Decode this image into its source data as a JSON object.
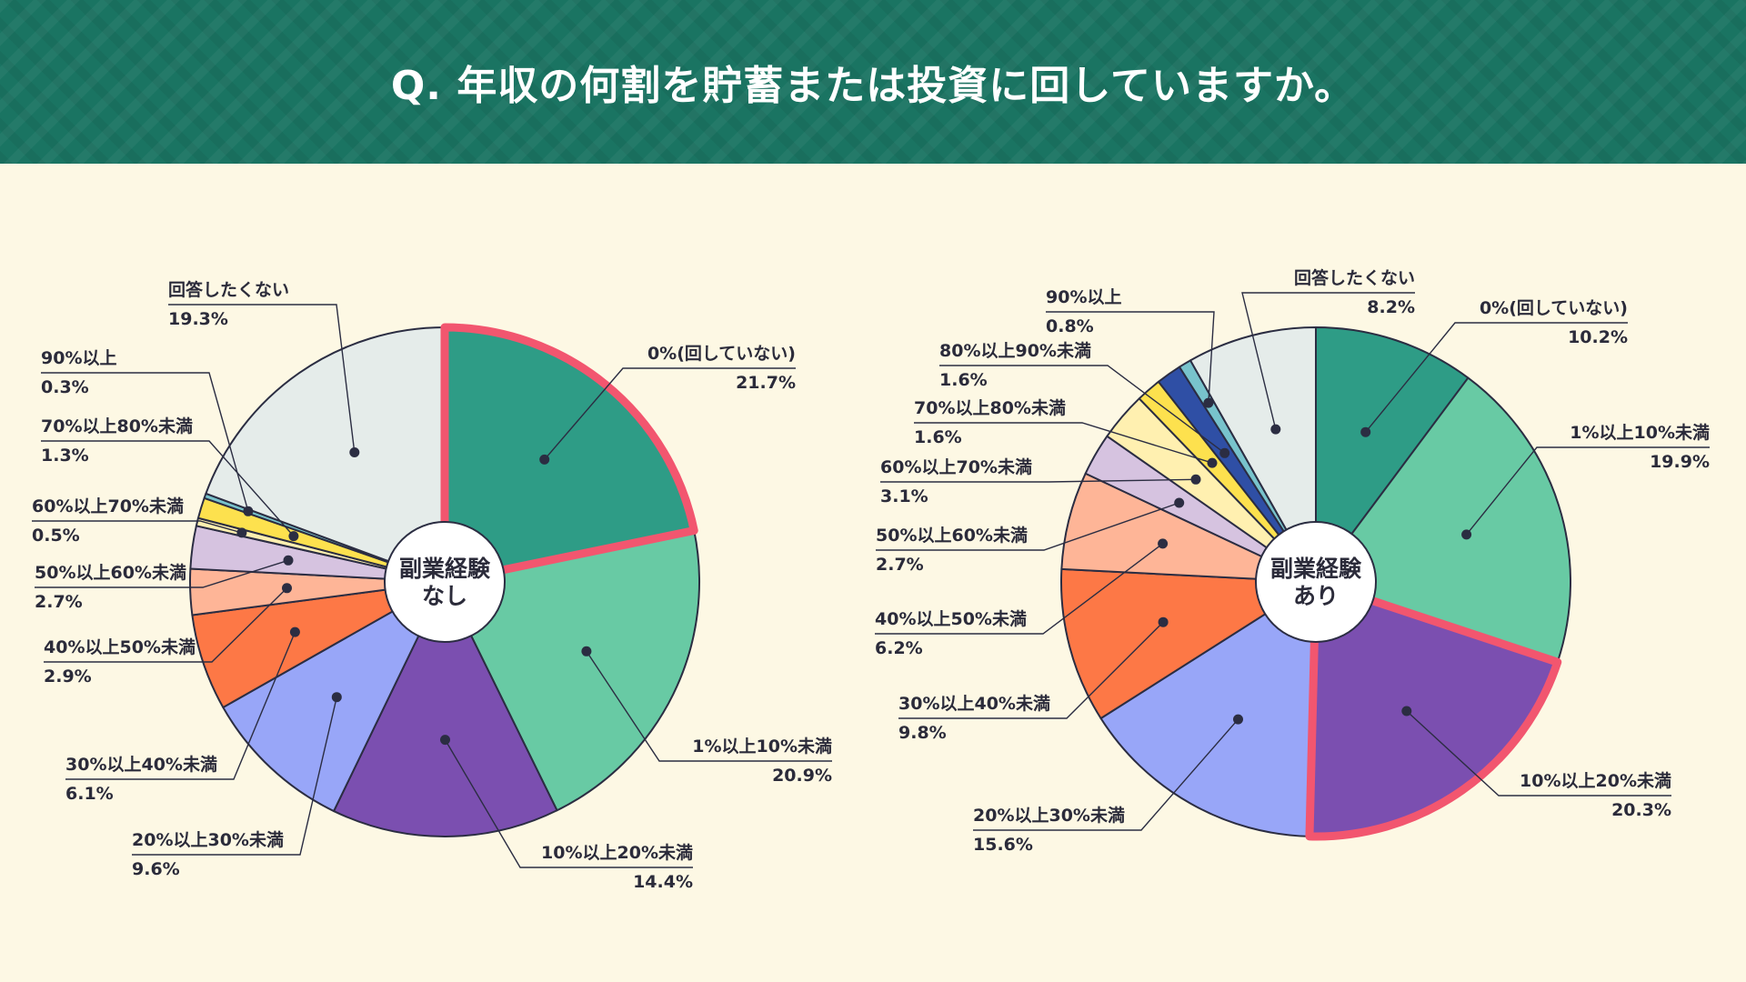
{
  "header": {
    "title": "Q. 年収の何割を貯蓄または投資に回していますか。",
    "background_color": "#1a7462"
  },
  "chart_data": [
    {
      "type": "pie",
      "center_label": [
        "副業経験",
        "なし"
      ],
      "highlight": "0%(回していない)",
      "unit": "%",
      "categories": [
        "0%(回していない)",
        "1%以上10%未満",
        "10%以上20%未満",
        "20%以上30%未満",
        "30%以上40%未満",
        "40%以上50%未満",
        "50%以上60%未満",
        "60%以上70%未満",
        "70%以上80%未満",
        "80%以上90%未満",
        "90%以上",
        "回答したくない"
      ],
      "values": [
        21.7,
        20.9,
        14.4,
        9.6,
        6.1,
        2.9,
        2.7,
        0.5,
        1.3,
        0.0,
        0.3,
        19.3
      ],
      "labels": [
        {
          "name": "0%(回していない)",
          "value": "21.7%"
        },
        {
          "name": "1%以上10%未満",
          "value": "20.9%"
        },
        {
          "name": "10%以上20%未満",
          "value": "14.4%"
        },
        {
          "name": "20%以上30%未満",
          "value": "9.6%"
        },
        {
          "name": "30%以上40%未満",
          "value": "6.1%"
        },
        {
          "name": "40%以上50%未満",
          "value": "2.9%"
        },
        {
          "name": "50%以上60%未満",
          "value": "2.7%"
        },
        {
          "name": "60%以上70%未満",
          "value": "0.5%"
        },
        {
          "name": "70%以上80%未満",
          "value": "1.3%"
        },
        null,
        {
          "name": "90%以上",
          "value": "0.3%"
        },
        {
          "name": "回答したくない",
          "value": "19.3%"
        }
      ]
    },
    {
      "type": "pie",
      "center_label": [
        "副業経験",
        "あり"
      ],
      "highlight": "10%以上20%未満",
      "unit": "%",
      "categories": [
        "0%(回していない)",
        "1%以上10%未満",
        "10%以上20%未満",
        "20%以上30%未満",
        "30%以上40%未満",
        "40%以上50%未満",
        "50%以上60%未満",
        "60%以上70%未満",
        "70%以上80%未満",
        "80%以上90%未満",
        "90%以上",
        "回答したくない"
      ],
      "values": [
        10.2,
        19.9,
        20.3,
        15.6,
        9.8,
        6.2,
        2.7,
        3.1,
        1.6,
        1.6,
        0.8,
        8.2
      ],
      "labels": [
        {
          "name": "0%(回していない)",
          "value": "10.2%"
        },
        {
          "name": "1%以上10%未満",
          "value": "19.9%"
        },
        {
          "name": "10%以上20%未満",
          "value": "20.3%"
        },
        {
          "name": "20%以上30%未満",
          "value": "15.6%"
        },
        {
          "name": "30%以上40%未満",
          "value": "9.8%"
        },
        {
          "name": "40%以上50%未満",
          "value": "6.2%"
        },
        {
          "name": "50%以上60%未満",
          "value": "2.7%"
        },
        {
          "name": "60%以上70%未満",
          "value": "3.1%"
        },
        {
          "name": "70%以上80%未満",
          "value": "1.6%"
        },
        {
          "name": "80%以上90%未満",
          "value": "1.6%"
        },
        {
          "name": "90%以上",
          "value": "0.8%"
        },
        {
          "name": "回答したくない",
          "value": "8.2%"
        }
      ]
    }
  ],
  "colors": {
    "slices": [
      "#2e9c86",
      "#68caa4",
      "#7b4fb0",
      "#98a6f8",
      "#fd7846",
      "#feb597",
      "#d6c3e0",
      "#fff0b0",
      "#fde14e",
      "#2f4fa5",
      "#78c3cc",
      "#e5ecea"
    ],
    "highlight": "#f2566f",
    "outline": "#2b2d42",
    "background": "#fdf8e4"
  }
}
